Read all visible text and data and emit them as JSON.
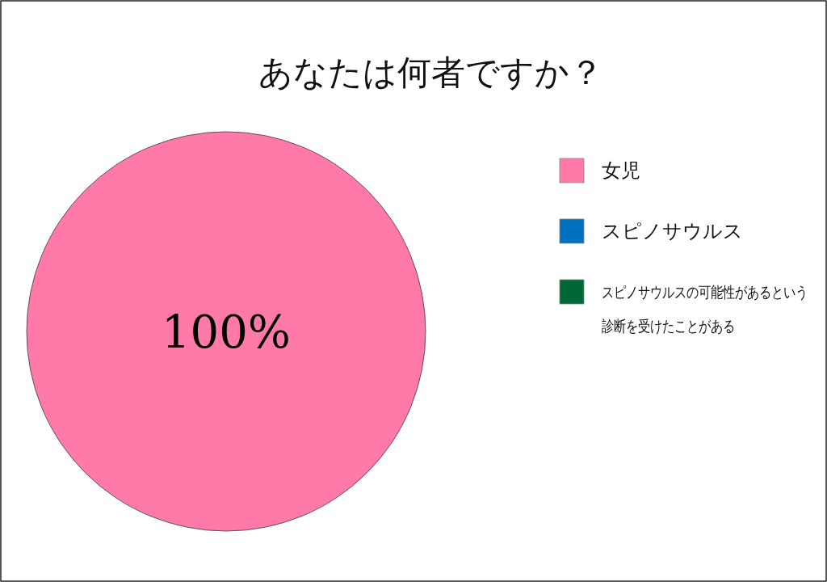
{
  "chart_data": {
    "type": "pie",
    "title": "あなたは何者ですか？",
    "categories": [
      "女児",
      "スピノサウルス",
      "スピノサウルスの可能性があるという診断を受けたことがある"
    ],
    "values": [
      100,
      0,
      0
    ],
    "colors": [
      "#ff7aa8",
      "#0070c0",
      "#006837"
    ],
    "value_labels": [
      "100%",
      null,
      null
    ],
    "legend": "right"
  }
}
